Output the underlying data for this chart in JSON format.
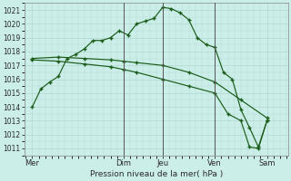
{
  "title": "",
  "xlabel": "Pression niveau de la mer( hPa )",
  "background_color": "#cceee8",
  "grid_color": "#b0d8d0",
  "line_color": "#1a5c1a",
  "ylim": [
    1010.5,
    1021.5
  ],
  "yticks": [
    1011,
    1012,
    1013,
    1014,
    1015,
    1016,
    1017,
    1018,
    1019,
    1020,
    1021
  ],
  "day_labels": [
    "Mer",
    "Dim",
    "Jeu",
    "Ven",
    "Sam"
  ],
  "day_positions": [
    0,
    3.5,
    5.0,
    7.0,
    9.0
  ],
  "xlim": [
    -0.3,
    9.8
  ],
  "lines": [
    {
      "x": [
        0,
        0.33,
        0.67,
        1.0,
        1.33,
        1.67,
        2.0,
        2.33,
        2.67,
        3.0,
        3.33,
        3.67,
        4.0,
        4.33,
        4.67,
        5.0,
        5.33,
        5.67,
        6.0,
        6.33,
        6.67,
        7.0,
        7.33,
        7.67,
        8.0,
        8.33,
        8.67,
        9.0
      ],
      "y": [
        1014.0,
        1015.3,
        1015.8,
        1016.2,
        1017.5,
        1017.8,
        1018.2,
        1018.8,
        1018.8,
        1019.0,
        1019.5,
        1019.2,
        1020.0,
        1020.2,
        1020.4,
        1021.2,
        1021.1,
        1020.8,
        1020.3,
        1019.0,
        1018.5,
        1018.3,
        1016.5,
        1016.0,
        1013.8,
        1012.5,
        1011.1,
        1013.0
      ]
    },
    {
      "x": [
        0,
        1.0,
        2.0,
        3.0,
        3.5,
        4.0,
        5.0,
        6.0,
        7.0,
        8.0,
        9.0
      ],
      "y": [
        1017.5,
        1017.6,
        1017.5,
        1017.4,
        1017.3,
        1017.2,
        1017.0,
        1016.5,
        1015.8,
        1014.5,
        1013.2
      ]
    },
    {
      "x": [
        0,
        1.0,
        2.0,
        3.0,
        3.5,
        4.0,
        5.0,
        6.0,
        7.0,
        7.5,
        8.0,
        8.33,
        8.67,
        9.0
      ],
      "y": [
        1017.4,
        1017.3,
        1017.1,
        1016.9,
        1016.7,
        1016.5,
        1016.0,
        1015.5,
        1015.0,
        1013.5,
        1013.0,
        1011.1,
        1011.0,
        1013.0
      ]
    }
  ],
  "vlines_x": [
    3.5,
    5.0,
    7.0
  ],
  "vlines_color": "#555555",
  "figsize": [
    3.2,
    2.0
  ],
  "dpi": 100
}
